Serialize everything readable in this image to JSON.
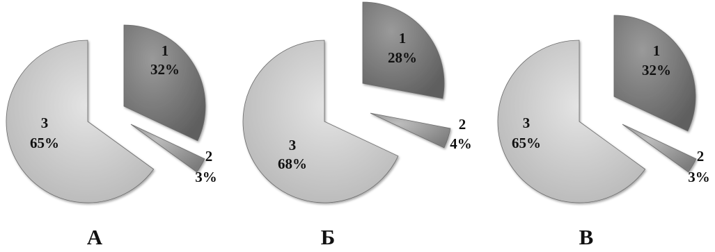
{
  "chart_data": [
    {
      "type": "pie",
      "title": "А",
      "slices": [
        {
          "label": "1",
          "value": 32,
          "value_text": "32%",
          "color": "#7a7a7a"
        },
        {
          "label": "2",
          "value": 3,
          "value_text": "3%",
          "color": "#9c9c9c"
        },
        {
          "label": "3",
          "value": 65,
          "value_text": "65%",
          "color": "#c8c8c8"
        }
      ]
    },
    {
      "type": "pie",
      "title": "Б",
      "slices": [
        {
          "label": "1",
          "value": 28,
          "value_text": "28%",
          "color": "#7a7a7a"
        },
        {
          "label": "2",
          "value": 4,
          "value_text": "4%",
          "color": "#9c9c9c"
        },
        {
          "label": "3",
          "value": 68,
          "value_text": "68%",
          "color": "#c8c8c8"
        }
      ]
    },
    {
      "type": "pie",
      "title": "В",
      "slices": [
        {
          "label": "1",
          "value": 32,
          "value_text": "32%",
          "color": "#7a7a7a"
        },
        {
          "label": "2",
          "value": 3,
          "value_text": "3%",
          "color": "#9c9c9c"
        },
        {
          "label": "3",
          "value": 65,
          "value_text": "65%",
          "color": "#c8c8c8"
        }
      ]
    }
  ]
}
